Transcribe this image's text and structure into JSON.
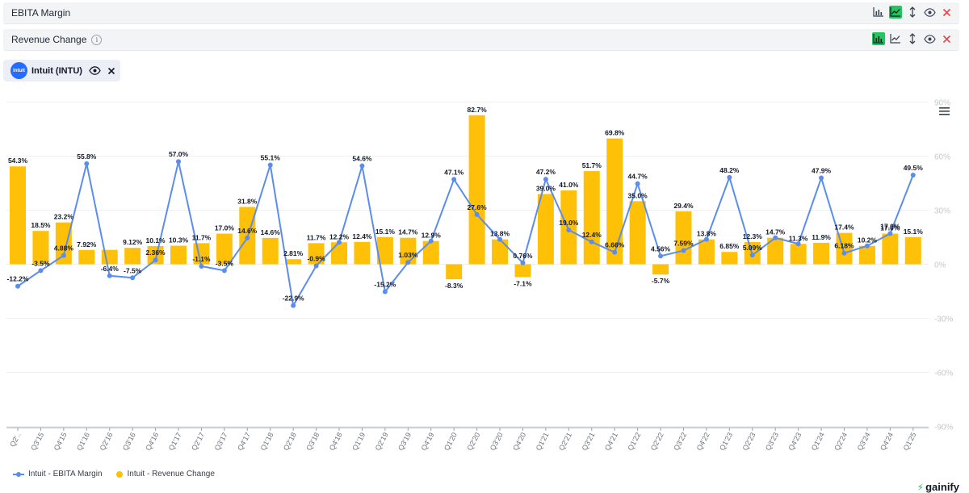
{
  "metrics": [
    {
      "title": "EBITA Margin",
      "info": false,
      "active_tool": "line"
    },
    {
      "title": "Revenue Change",
      "info": true,
      "active_tool": "bar"
    }
  ],
  "company": {
    "name": "Intuit (INTU)",
    "logo_text": "intuit"
  },
  "legend": [
    {
      "label": "Intuit - EBITA Margin",
      "color": "#5b8def"
    },
    {
      "label": "Intuit - Revenue Change",
      "color": "#ffc107"
    }
  ],
  "brand": "gainify",
  "colors": {
    "line": "#5b8def",
    "bar": "#ffc107",
    "close": "#ef4444",
    "active": "#22c55e"
  },
  "chart_data": {
    "type": "bar",
    "title": "",
    "xlabel": "",
    "ylabel": "",
    "ylim": [
      -90,
      90
    ],
    "y_ticks": [
      "90%",
      "60%",
      "30%",
      "0%",
      "-30%",
      "-60%",
      "-90%"
    ],
    "y_tick_values": [
      90,
      60,
      30,
      0,
      -30,
      -60,
      -90
    ],
    "categories": [
      "Q2'..",
      "Q3'15",
      "Q4'15",
      "Q1'16",
      "Q2'16",
      "Q3'16",
      "Q4'16",
      "Q1'17",
      "Q2'17",
      "Q3'17",
      "Q4'17",
      "Q1'18",
      "Q2'18",
      "Q3'18",
      "Q4'18",
      "Q1'19",
      "Q2'19",
      "Q3'19",
      "Q4'19",
      "Q1'20",
      "Q2'20",
      "Q3'20",
      "Q4'20",
      "Q1'21",
      "Q2'21",
      "Q3'21",
      "Q4'21",
      "Q1'22",
      "Q2'22",
      "Q3'22",
      "Q4'22",
      "Q1'23",
      "Q2'23",
      "Q3'23",
      "Q4'23",
      "Q1'24",
      "Q2'24",
      "Q3'24",
      "Q4'24",
      "Q1'25"
    ],
    "series": [
      {
        "name": "Intuit - Revenue Change",
        "type": "bar",
        "values": [
          54.3,
          18.5,
          23.2,
          7.92,
          8.0,
          9.12,
          10.1,
          10.3,
          11.7,
          17.0,
          31.8,
          14.6,
          2.81,
          11.7,
          12.2,
          12.4,
          15.1,
          14.7,
          12.9,
          -8.3,
          82.7,
          13.8,
          -7.1,
          39.0,
          41.0,
          51.7,
          69.8,
          35.0,
          -5.7,
          29.4,
          13.8,
          6.85,
          12.3,
          14.7,
          11.3,
          11.9,
          17.4,
          10.2,
          17.0,
          15.1
        ],
        "labels": [
          "54.3%",
          "18.5%",
          "23.2%",
          "7.92%",
          "",
          "9.12%",
          "10.1%",
          "10.3%",
          "11.7%",
          "17.0%",
          "31.8%",
          "14.6%",
          "2.81%",
          "11.7%",
          "12.2%",
          "12.4%",
          "15.1%",
          "14.7%",
          "12.9%",
          "-8.3%",
          "82.7%",
          "13.8%",
          "-7.1%",
          "39.0%",
          "41.0%",
          "51.7%",
          "69.8%",
          "35.0%",
          "-5.7%",
          "29.4%",
          "13.8%",
          "6.85%",
          "12.3%",
          "14.7%",
          "11.3%",
          "11.9%",
          "17.4%",
          "10.2%",
          "17.0%",
          "15.1%"
        ]
      },
      {
        "name": "Intuit - EBITA Margin",
        "type": "line",
        "values": [
          -12.2,
          -3.5,
          4.88,
          55.8,
          -6.4,
          -7.5,
          2.36,
          57.0,
          -1.1,
          -3.5,
          14.6,
          55.1,
          -22.9,
          -0.9,
          12.2,
          54.6,
          -15.2,
          1.03,
          12.9,
          47.1,
          27.6,
          13.8,
          0.76,
          47.2,
          19.0,
          12.4,
          6.66,
          44.7,
          4.56,
          7.59,
          13.8,
          48.2,
          5.09,
          14.7,
          11.3,
          47.9,
          6.18,
          10.2,
          17.0,
          49.5
        ],
        "labels": [
          "-12.2%",
          "-3.5%",
          "4.88%",
          "55.8%",
          "-6.4%",
          "-7.5%",
          "2.36%",
          "57.0%",
          "-1.1%",
          "-3.5%",
          "14.6%",
          "55.1%",
          "-22.9%",
          "-0.9%",
          "",
          "54.6%",
          "-15.2%",
          "1.03%",
          "",
          "47.1%",
          "27.6%",
          "",
          "0.76%",
          "47.2%",
          "19.0%",
          "12.4%",
          "6.66%",
          "44.7%",
          "4.56%",
          "7.59%",
          "",
          "48.2%",
          "5.09%",
          "",
          "",
          "47.9%",
          "6.18%",
          "",
          "17.0%",
          "49.5%"
        ]
      }
    ],
    "legend_position": "bottom-left"
  }
}
